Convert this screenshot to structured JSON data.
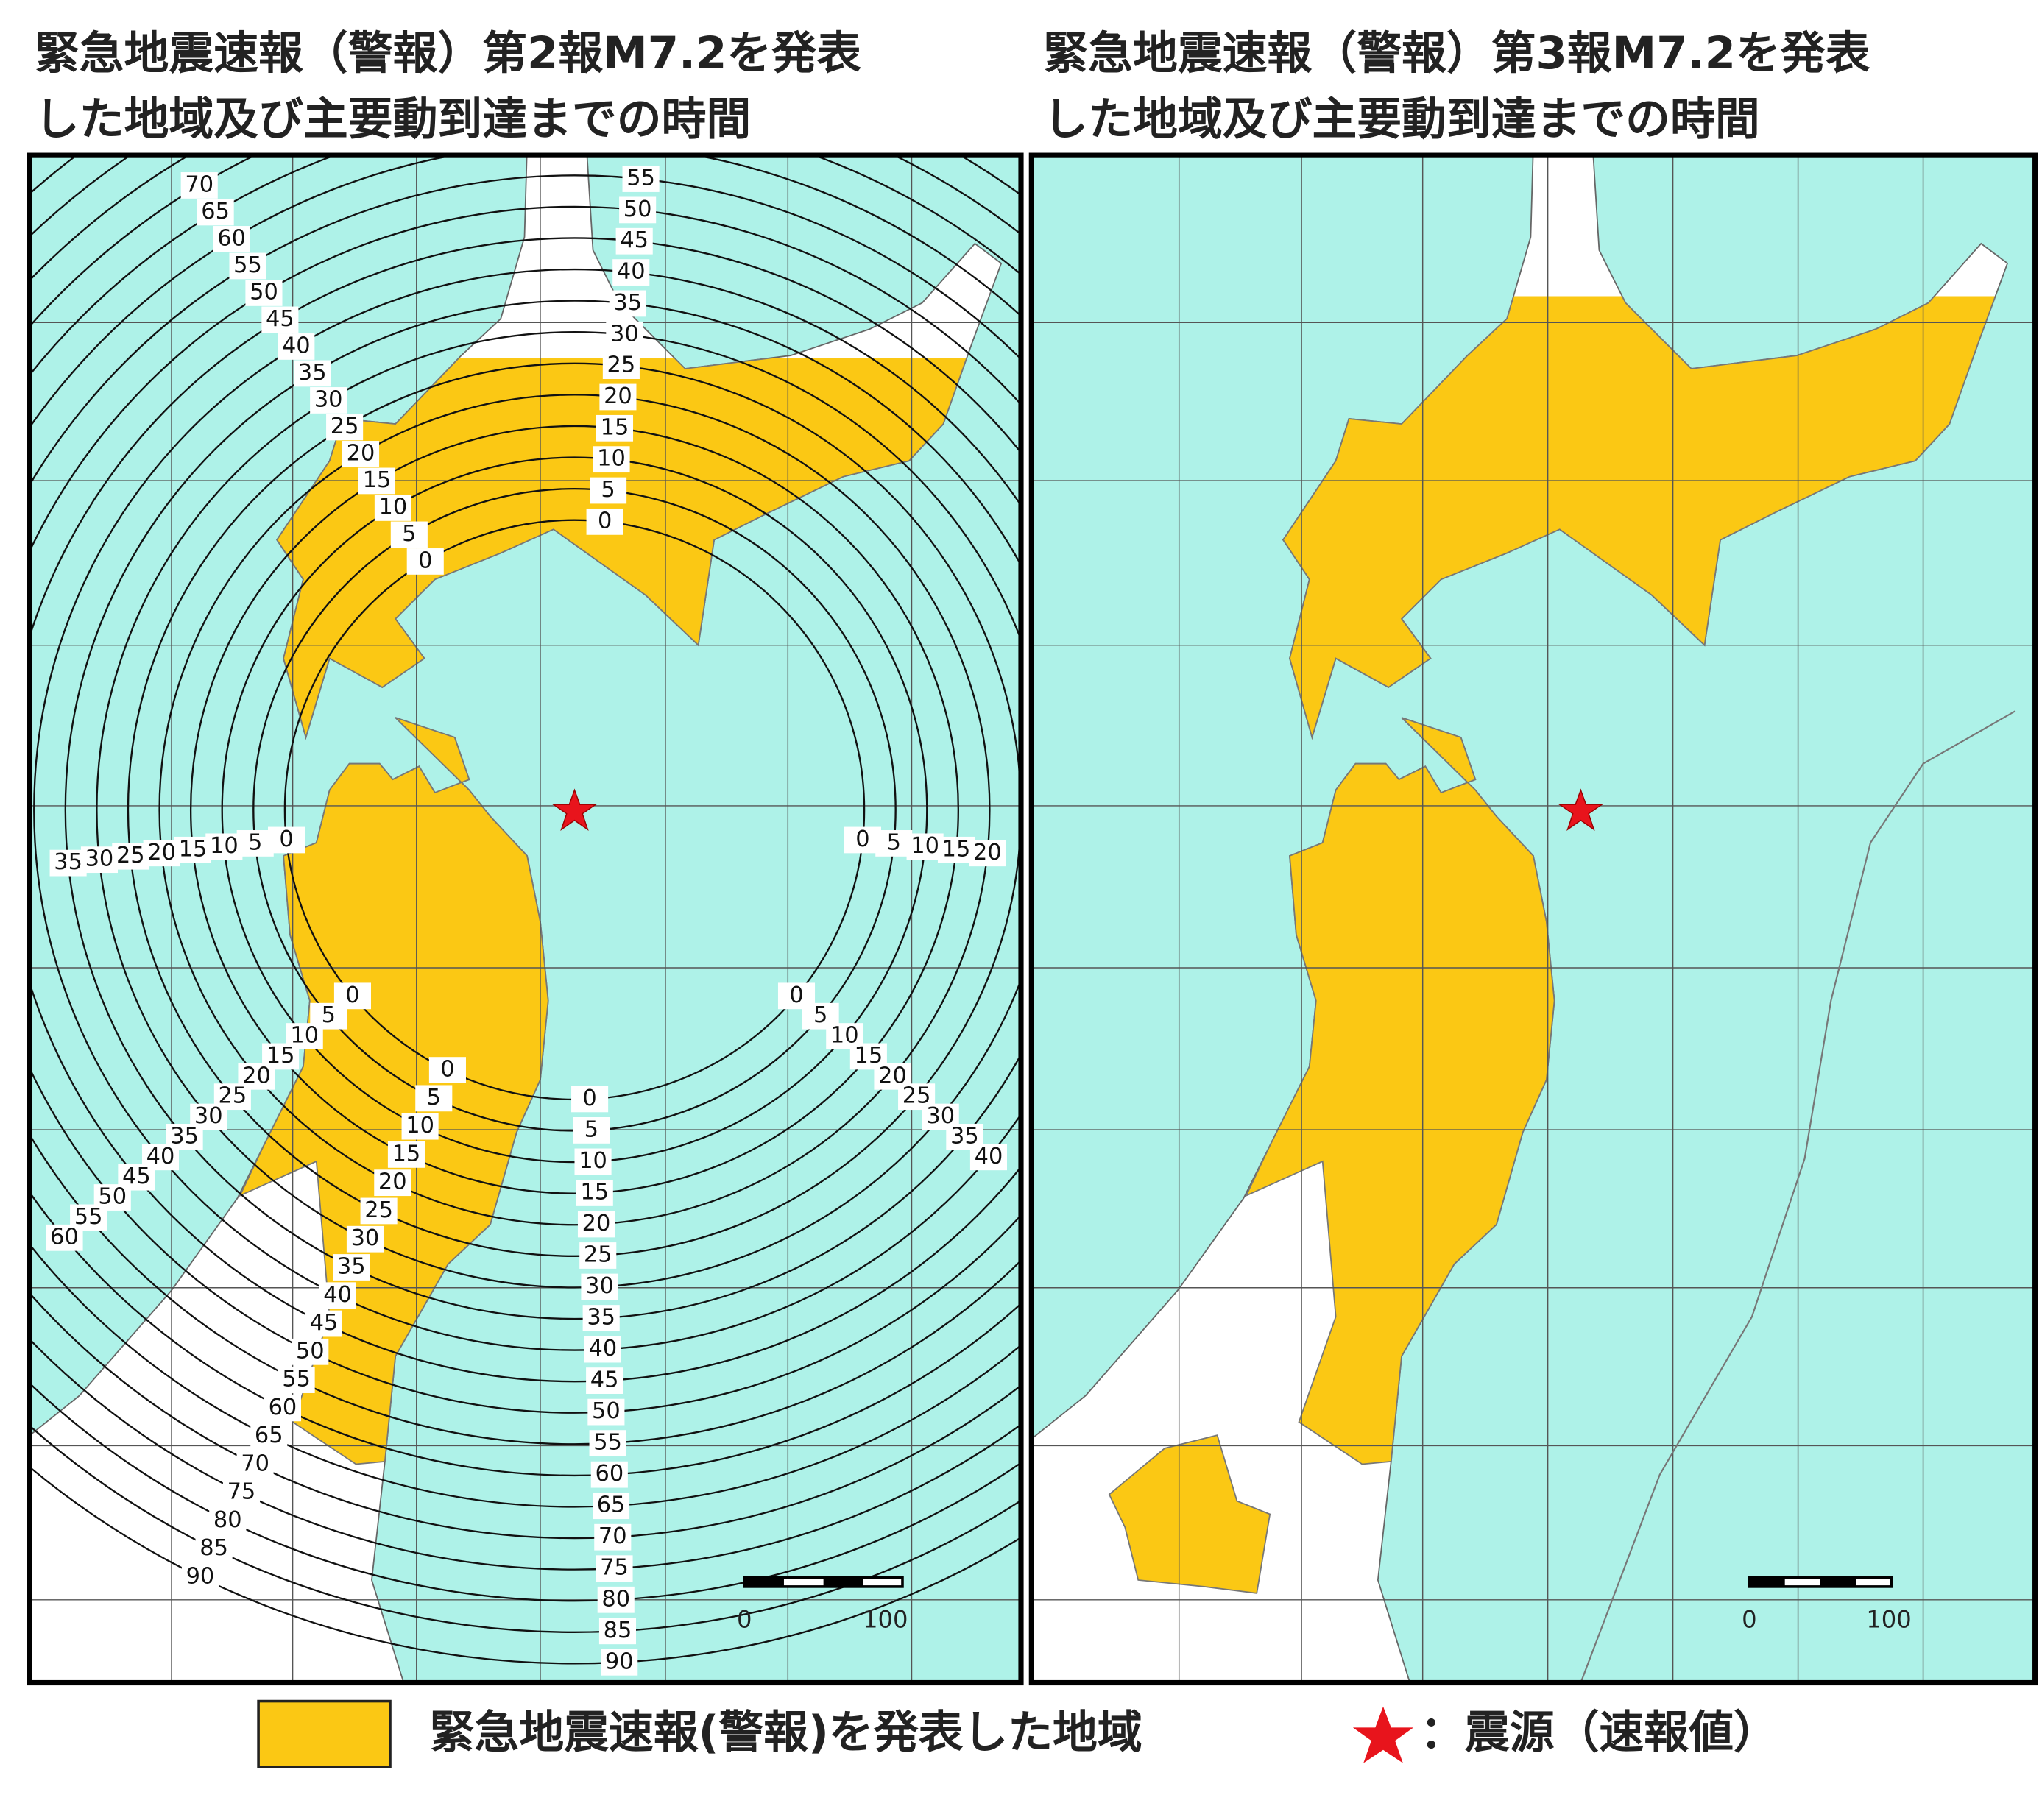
{
  "panels": [
    {
      "title": [
        "緊急地震速報（警報）第2報M7.2を発表",
        "した地域及び主要動到達までの時間"
      ],
      "scale_labels": [
        "0",
        "100"
      ],
      "contour_labels": [
        "0",
        "5",
        "10",
        "15",
        "20",
        "25",
        "30",
        "35",
        "40",
        "45",
        "50",
        "55",
        "60",
        "65",
        "70",
        "75",
        "80",
        "85",
        "90"
      ]
    },
    {
      "title": [
        "緊急地震速報（警報）第3報M7.2を発表",
        "した地域及び主要動到達までの時間"
      ],
      "scale_labels": [
        "0",
        "100"
      ]
    }
  ],
  "legend": {
    "area": "緊急地震速報(警報)を発表した地域",
    "epicenter": "：震源（速報値）"
  }
}
